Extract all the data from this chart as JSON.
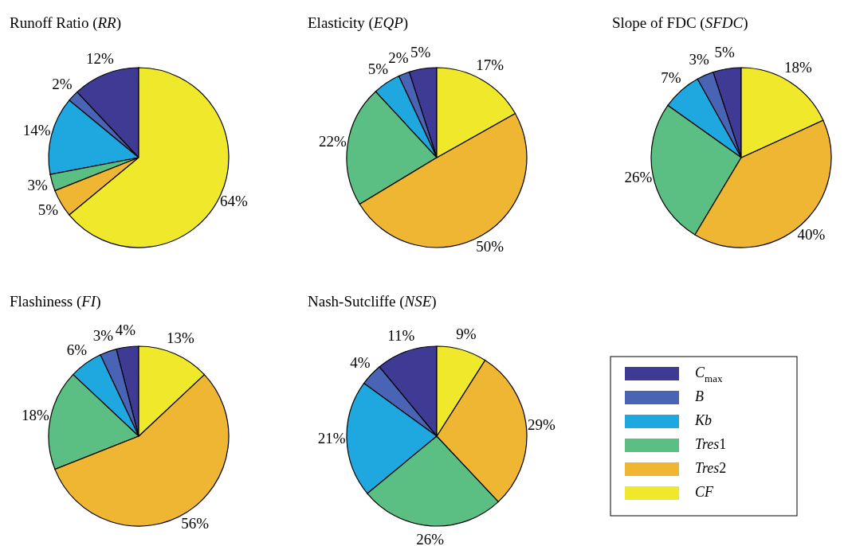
{
  "chart_data": [
    {
      "type": "pie",
      "title": "Runoff Ratio (RR)",
      "values": [
        12,
        2,
        14,
        3,
        5,
        64
      ],
      "value_labels": [
        "12%",
        "2%",
        "14%",
        "3%",
        "5%",
        "64%"
      ],
      "colors": [
        "#3f3a94",
        "#4a64b5",
        "#1fa8e0",
        "#5bbf84",
        "#efb634",
        "#f0e92b"
      ]
    },
    {
      "type": "pie",
      "title": "Elasticity (EQP)",
      "values": [
        5,
        2,
        5,
        22,
        50,
        17
      ],
      "value_labels": [
        "5%",
        "2%",
        "5%",
        "22%",
        "50%",
        "17%"
      ],
      "colors": [
        "#3f3a94",
        "#4a64b5",
        "#1fa8e0",
        "#5bbf84",
        "#efb634",
        "#f0e92b"
      ]
    },
    {
      "type": "pie",
      "title": "Slope of FDC (SFDC)",
      "values": [
        5,
        3,
        7,
        26,
        40,
        18
      ],
      "value_labels": [
        "5%",
        "3%",
        "7%",
        "26%",
        "40%",
        "18%"
      ],
      "colors": [
        "#3f3a94",
        "#4a64b5",
        "#1fa8e0",
        "#5bbf84",
        "#efb634",
        "#f0e92b"
      ]
    },
    {
      "type": "pie",
      "title": "Flashiness (FI)",
      "values": [
        4,
        3,
        6,
        18,
        56,
        13
      ],
      "value_labels": [
        "4%",
        "3%",
        "6%",
        "18%",
        "56%",
        "13%"
      ],
      "colors": [
        "#3f3a94",
        "#4a64b5",
        "#1fa8e0",
        "#5bbf84",
        "#efb634",
        "#f0e92b"
      ]
    },
    {
      "type": "pie",
      "title": "Nash-Sutcliffe (NSE)",
      "categories": [
        "C$_{max}$",
        "B",
        "Kb",
        "Tres1",
        "Tres2",
        "CF"
      ],
      "values": [
        11,
        4,
        21,
        26,
        29,
        9
      ],
      "value_labels": [
        "11%",
        "4%",
        "21%",
        "26%",
        "29%",
        "9%"
      ],
      "colors": [
        "#3f3a94",
        "#4a64b5",
        "#1fa8e0",
        "#5bbf84",
        "#efb634",
        "#f0e92b"
      ],
      "legend": "right"
    }
  ]
}
